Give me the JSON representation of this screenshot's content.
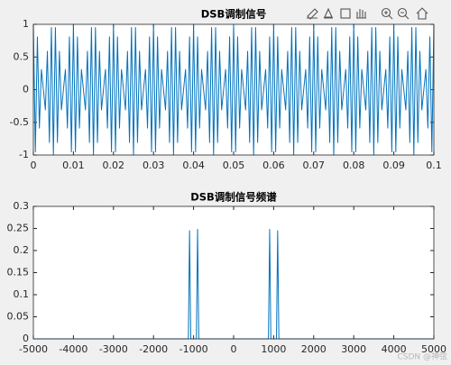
{
  "chart_data": [
    {
      "type": "line",
      "title": "DSB调制信号",
      "x": [
        0,
        0.0005,
        0.001,
        0.0015,
        0.002,
        0.0025,
        0.003,
        0.0035,
        0.004,
        0.0045,
        0.005,
        0.0055,
        0.006,
        0.0065,
        0.007,
        0.0075,
        0.008,
        0.0085,
        0.009,
        0.0095,
        0.01,
        0.0105,
        0.011,
        0.0115,
        0.012,
        0.0125,
        0.013,
        0.0135,
        0.014,
        0.0145,
        0.015,
        0.0155,
        0.016,
        0.0165,
        0.017,
        0.0175,
        0.018,
        0.0185,
        0.019,
        0.0195,
        0.02,
        0.0205,
        0.021,
        0.0215,
        0.022,
        0.0225,
        0.023,
        0.0235,
        0.024,
        0.0245,
        0.025,
        0.0255,
        0.026,
        0.0265,
        0.027,
        0.0275,
        0.028,
        0.0285,
        0.029,
        0.0295,
        0.03,
        0.0305,
        0.031,
        0.0315,
        0.032,
        0.0325,
        0.033,
        0.0335,
        0.034,
        0.0345,
        0.035,
        0.0355,
        0.036,
        0.0365,
        0.037,
        0.0375,
        0.038,
        0.0385,
        0.039,
        0.0395,
        0.04,
        0.0405,
        0.041,
        0.0415,
        0.042,
        0.0425,
        0.043,
        0.0435,
        0.044,
        0.0445,
        0.045,
        0.0455,
        0.046,
        0.0465,
        0.047,
        0.0475,
        0.048,
        0.0485,
        0.049,
        0.0495,
        0.05,
        0.0505,
        0.051,
        0.0515,
        0.052,
        0.0525,
        0.053,
        0.0535,
        0.054,
        0.0545,
        0.055,
        0.0555,
        0.056,
        0.0565,
        0.057,
        0.0575,
        0.058,
        0.0585,
        0.059,
        0.0595,
        0.06,
        0.0605,
        0.061,
        0.0615,
        0.062,
        0.0625,
        0.063,
        0.0635,
        0.064,
        0.0645,
        0.065,
        0.0655,
        0.066,
        0.0665,
        0.067,
        0.0675,
        0.068,
        0.0685,
        0.069,
        0.0695,
        0.07,
        0.0705,
        0.071,
        0.0715,
        0.072,
        0.0725,
        0.073,
        0.0735,
        0.074,
        0.0745,
        0.075,
        0.0755,
        0.076,
        0.0765,
        0.077,
        0.0775,
        0.078,
        0.0785,
        0.079,
        0.0795,
        0.08,
        0.0805,
        0.081,
        0.0815,
        0.082,
        0.0825,
        0.083,
        0.0835,
        0.084,
        0.0845,
        0.085,
        0.0855,
        0.086,
        0.0865,
        0.087,
        0.0875,
        0.088,
        0.0885,
        0.089,
        0.0895,
        0.09,
        0.0905,
        0.091,
        0.0915,
        0.092,
        0.0925,
        0.093,
        0.0935,
        0.094,
        0.0945,
        0.095,
        0.0955,
        0.096,
        0.0965,
        0.097,
        0.0975,
        0.098,
        0.0985,
        0.099,
        0.0995,
        0.1
      ],
      "values": [
        1,
        -0.951,
        0.809,
        -0.588,
        0.309,
        0,
        -0.309,
        0.588,
        -0.809,
        0.951,
        -1,
        0.951,
        -0.809,
        0.588,
        -0.309,
        0,
        0.309,
        -0.588,
        0.809,
        -0.951,
        1,
        -0.951,
        0.809,
        -0.588,
        0.309,
        0,
        -0.309,
        0.588,
        -0.809,
        0.951,
        -1,
        0.951,
        -0.809,
        0.588,
        -0.309,
        0,
        0.309,
        -0.588,
        0.809,
        -0.951,
        1,
        -0.951,
        0.809,
        -0.588,
        0.309,
        0,
        -0.309,
        0.588,
        -0.809,
        0.951,
        -1,
        0.951,
        -0.809,
        0.588,
        -0.309,
        0,
        0.309,
        -0.588,
        0.809,
        -0.951,
        1,
        -0.951,
        0.809,
        -0.588,
        0.309,
        0,
        -0.309,
        0.588,
        -0.809,
        0.951,
        -1,
        0.951,
        -0.809,
        0.588,
        -0.309,
        0,
        0.309,
        -0.588,
        0.809,
        -0.951,
        1,
        -0.951,
        0.809,
        -0.588,
        0.309,
        0,
        -0.309,
        0.588,
        -0.809,
        0.951,
        -1,
        0.951,
        -0.809,
        0.588,
        -0.309,
        0,
        0.309,
        -0.588,
        0.809,
        -0.951,
        1,
        -0.951,
        0.809,
        -0.588,
        0.309,
        0,
        -0.309,
        0.588,
        -0.809,
        0.951,
        -1,
        0.951,
        -0.809,
        0.588,
        -0.309,
        0,
        0.309,
        -0.588,
        0.809,
        -0.951,
        1,
        -0.951,
        0.809,
        -0.588,
        0.309,
        0,
        -0.309,
        0.588,
        -0.809,
        0.951,
        -1,
        0.951,
        -0.809,
        0.588,
        -0.309,
        0,
        0.309,
        -0.588,
        0.809,
        -0.951,
        1,
        -0.951,
        0.809,
        -0.588,
        0.309,
        0,
        -0.309,
        0.588,
        -0.809,
        0.951,
        -1,
        0.951,
        -0.809,
        0.588,
        -0.309,
        0,
        0.309,
        -0.588,
        0.809,
        -0.951,
        1,
        -0.951,
        0.809,
        -0.588,
        0.309,
        0,
        -0.309,
        0.588,
        -0.809,
        0.951,
        -1,
        0.951,
        -0.809,
        0.588,
        -0.309,
        0,
        0.309,
        -0.588,
        0.809,
        -0.951,
        1,
        -0.951,
        0.809,
        -0.588,
        0.309,
        0,
        -0.309,
        0.588,
        -0.809,
        0.951,
        -1,
        0.951,
        -0.809,
        0.588,
        -0.309,
        0,
        0.309,
        -0.588,
        0.809,
        -0.951,
        1
      ],
      "color": "#0072bd",
      "xlim": [
        0,
        0.1
      ],
      "xticks": [
        0,
        0.01,
        0.02,
        0.03,
        0.04,
        0.05,
        0.06,
        0.07,
        0.08,
        0.09,
        0.1
      ],
      "ylim": [
        -1,
        1
      ],
      "yticks": [
        -1,
        -0.5,
        0,
        0.5,
        1
      ]
    },
    {
      "type": "line",
      "title": "DSB调制信号频谱",
      "x": [
        -5000,
        -1130,
        -1100,
        -1070,
        -930,
        -900,
        -870,
        870,
        900,
        930,
        1070,
        1100,
        1130,
        5000
      ],
      "values": [
        0,
        0,
        0.245,
        0,
        0,
        0.248,
        0,
        0,
        0.248,
        0,
        0,
        0.245,
        0,
        0
      ],
      "color": "#0072bd",
      "xlim": [
        -5000,
        5000
      ],
      "xticks": [
        -5000,
        -4000,
        -3000,
        -2000,
        -1000,
        0,
        1000,
        2000,
        3000,
        4000,
        5000
      ],
      "ylim": [
        0,
        0.3
      ],
      "yticks": [
        0,
        0.05,
        0.1,
        0.15,
        0.2,
        0.25,
        0.3
      ]
    }
  ],
  "watermark": "CSDN @神弦"
}
